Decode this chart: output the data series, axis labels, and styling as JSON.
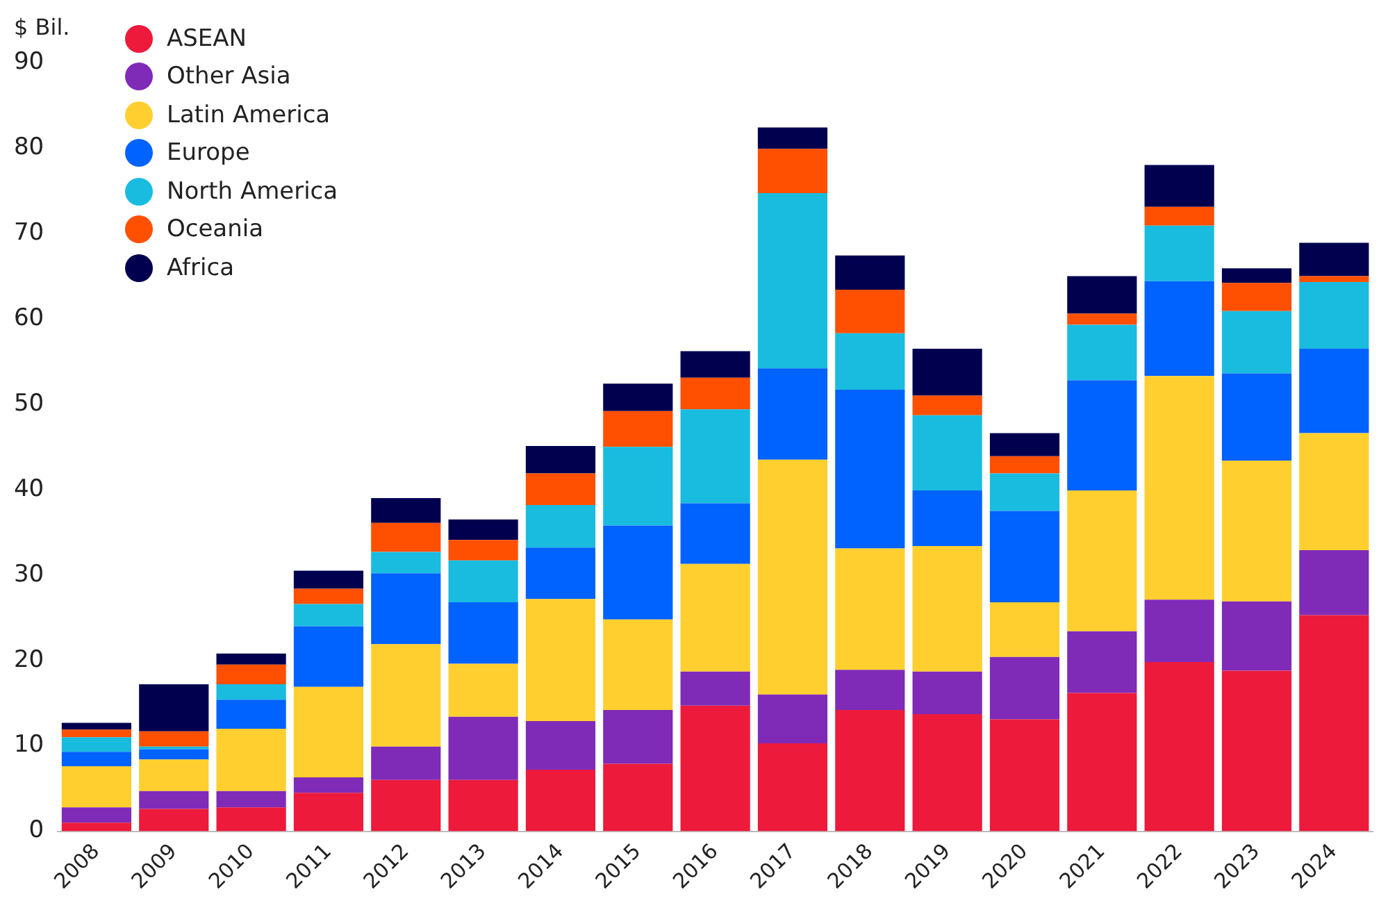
{
  "chart_data": {
    "type": "bar",
    "stacked": true,
    "ylabel": "$ Bil.",
    "categories": [
      "2008",
      "2009",
      "2010",
      "2011",
      "2012",
      "2013",
      "2014",
      "2015",
      "2016",
      "2017",
      "2018",
      "2019",
      "2020",
      "2021",
      "2022",
      "2023",
      "2024"
    ],
    "series": [
      {
        "name": "ASEAN",
        "color": "#ed1a3b",
        "values": [
          1.0,
          2.6,
          2.8,
          4.5,
          6.0,
          6.0,
          7.2,
          7.9,
          14.7,
          10.3,
          14.2,
          13.7,
          13.1,
          16.2,
          19.8,
          18.8,
          25.3
        ]
      },
      {
        "name": "Other Asia",
        "color": "#7f2bb8",
        "values": [
          1.8,
          2.1,
          1.9,
          1.8,
          3.9,
          7.4,
          5.7,
          6.3,
          4.0,
          5.7,
          4.7,
          5.0,
          7.3,
          7.2,
          7.3,
          8.1,
          7.6
        ]
      },
      {
        "name": "Latin America",
        "color": "#fecf2f",
        "values": [
          4.8,
          3.7,
          7.3,
          10.6,
          12.0,
          6.2,
          14.3,
          10.6,
          12.6,
          27.5,
          14.2,
          14.7,
          6.4,
          16.5,
          26.2,
          16.5,
          13.7
        ]
      },
      {
        "name": "Europe",
        "color": "#0062ff",
        "values": [
          1.7,
          1.2,
          3.4,
          7.1,
          8.3,
          7.2,
          6.0,
          11.0,
          7.1,
          10.7,
          18.6,
          6.5,
          10.7,
          12.9,
          11.1,
          10.2,
          9.9
        ]
      },
      {
        "name": "North America",
        "color": "#19bcdf",
        "values": [
          1.7,
          0.3,
          1.8,
          2.6,
          2.5,
          4.9,
          5.0,
          9.2,
          11.0,
          20.5,
          6.6,
          8.8,
          4.4,
          6.5,
          6.5,
          7.3,
          7.8
        ]
      },
      {
        "name": "Oceania",
        "color": "#ff4f00",
        "values": [
          0.9,
          1.8,
          2.3,
          1.8,
          3.4,
          2.4,
          3.7,
          4.2,
          3.7,
          5.2,
          5.1,
          2.3,
          2.0,
          1.3,
          2.2,
          3.3,
          0.7
        ]
      },
      {
        "name": "Africa",
        "color": "#00004f",
        "values": [
          0.8,
          5.5,
          1.3,
          2.1,
          2.9,
          2.4,
          3.2,
          3.2,
          3.1,
          2.5,
          4.0,
          5.5,
          2.7,
          4.4,
          4.9,
          1.7,
          3.9
        ]
      }
    ],
    "ylim": [
      0,
      90
    ],
    "yticks": [
      0,
      10,
      20,
      30,
      40,
      50,
      60,
      70,
      80,
      90
    ],
    "grid": false,
    "legend": "top left"
  }
}
